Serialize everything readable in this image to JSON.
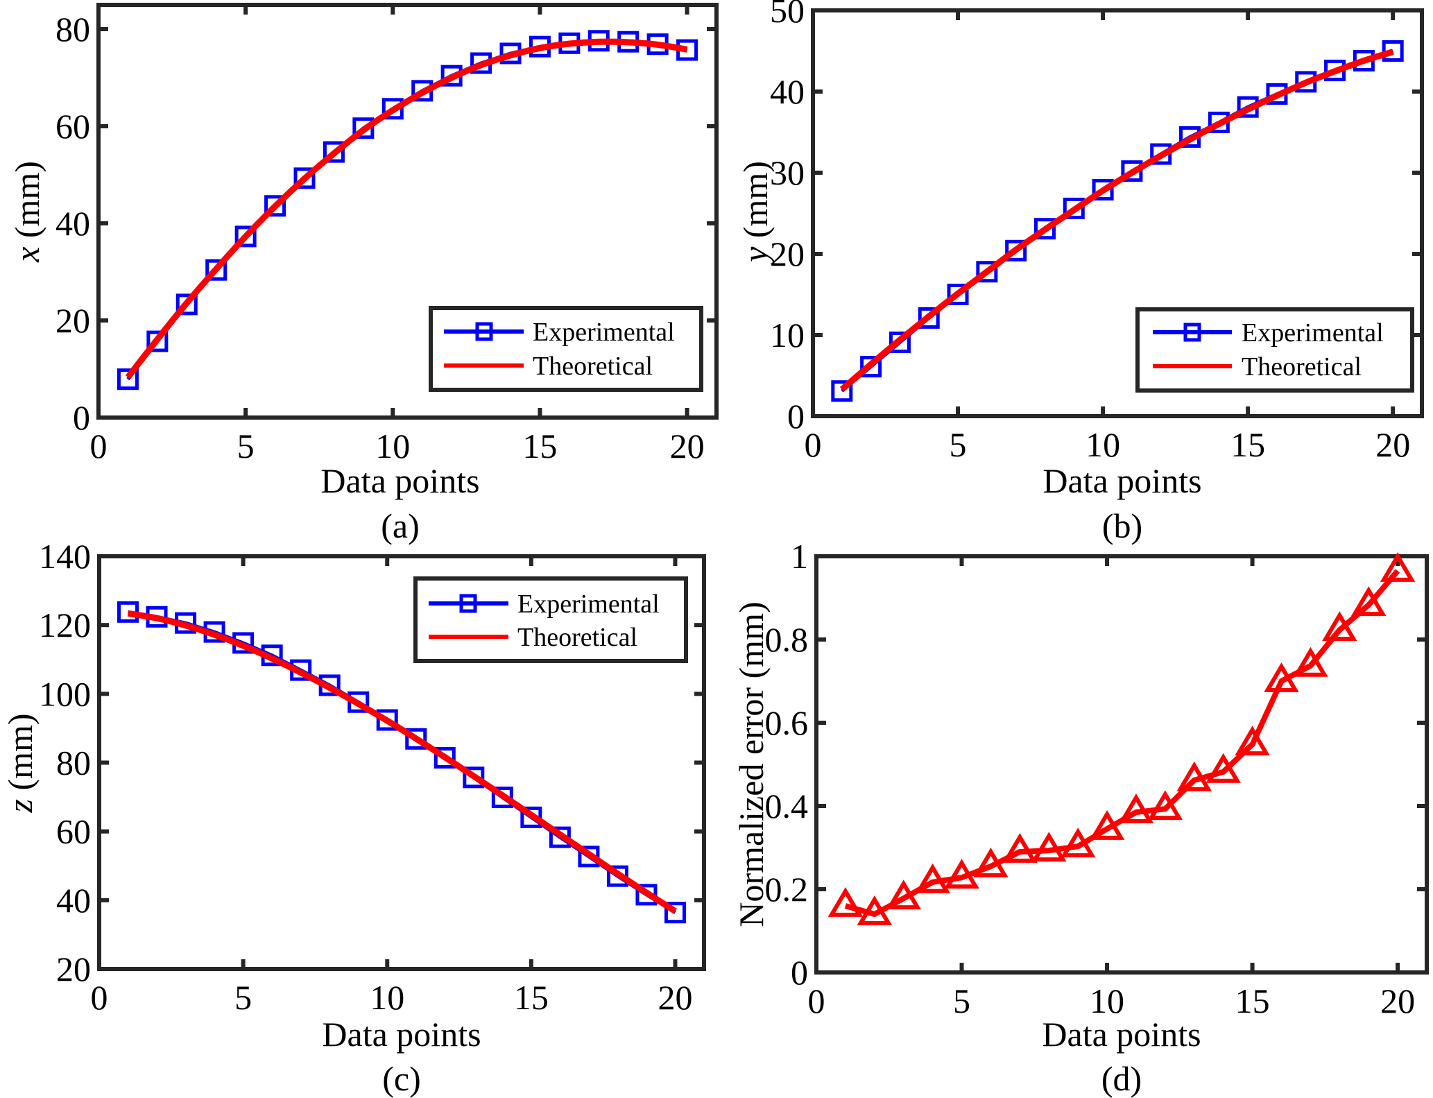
{
  "figure": {
    "colors": {
      "experimental": "#0000ff",
      "theoretical": "#ff0000",
      "error": "#ff0000",
      "axes": "#262626"
    }
  },
  "chart_data": [
    {
      "id": "a",
      "type": "line",
      "panel_label": "(a)",
      "xlabel": "Data points",
      "ylabel_var": "x",
      "ylabel_unit": " (mm)",
      "xlim": [
        0,
        21
      ],
      "ylim": [
        0,
        85
      ],
      "xticks": [
        0,
        5,
        10,
        15,
        20
      ],
      "yticks": [
        0,
        20,
        40,
        60,
        80
      ],
      "grid": false,
      "legend": {
        "placement": "bottom-right",
        "entries": [
          "Experimental",
          "Theoretical"
        ]
      },
      "x": [
        1,
        2,
        3,
        4,
        5,
        6,
        7,
        8,
        9,
        10,
        11,
        12,
        13,
        14,
        15,
        16,
        17,
        18,
        19,
        20
      ],
      "series": [
        {
          "name": "Experimental",
          "marker": "square",
          "values": [
            7.9,
            15.7,
            23.3,
            30.4,
            37.3,
            43.6,
            49.3,
            54.7,
            59.6,
            63.6,
            67.3,
            70.4,
            73.0,
            75.0,
            76.4,
            77.1,
            77.6,
            77.4,
            76.9,
            75.7
          ]
        },
        {
          "name": "Theoretical",
          "marker": "none",
          "values": [
            8.3,
            16.1,
            23.6,
            30.6,
            37.3,
            43.5,
            49.2,
            54.4,
            59.2,
            63.3,
            66.9,
            70.0,
            72.6,
            74.6,
            76.1,
            77.0,
            77.4,
            77.3,
            76.8,
            75.8
          ]
        }
      ]
    },
    {
      "id": "b",
      "type": "line",
      "panel_label": "(b)",
      "xlabel": "Data points",
      "ylabel_var": "y",
      "ylabel_unit": " (mm)",
      "xlim": [
        0,
        21
      ],
      "ylim": [
        0,
        50
      ],
      "xticks": [
        0,
        5,
        10,
        15,
        20
      ],
      "yticks": [
        0,
        10,
        20,
        30,
        40,
        50
      ],
      "grid": false,
      "legend": {
        "placement": "bottom-right",
        "entries": [
          "Experimental",
          "Theoretical"
        ]
      },
      "x": [
        1,
        2,
        3,
        4,
        5,
        6,
        7,
        8,
        9,
        10,
        11,
        12,
        13,
        14,
        15,
        16,
        17,
        18,
        19,
        20
      ],
      "series": [
        {
          "name": "Experimental",
          "marker": "square",
          "values": [
            3.1,
            6.1,
            9.1,
            12.1,
            15.0,
            17.8,
            20.4,
            23.1,
            25.6,
            27.9,
            30.2,
            32.3,
            34.4,
            36.2,
            38.1,
            39.7,
            41.2,
            42.6,
            43.8,
            45.0
          ]
        },
        {
          "name": "Theoretical",
          "marker": "none",
          "values": [
            3.3,
            6.4,
            9.4,
            12.3,
            15.1,
            17.8,
            20.5,
            23.0,
            25.4,
            27.8,
            30.0,
            32.1,
            34.1,
            36.0,
            37.8,
            39.5,
            41.1,
            42.5,
            43.8,
            44.9
          ]
        }
      ]
    },
    {
      "id": "c",
      "type": "line",
      "panel_label": "(c)",
      "xlabel": "Data points",
      "ylabel_var": "z",
      "ylabel_unit": " (mm)",
      "xlim": [
        0,
        21
      ],
      "ylim": [
        20,
        140
      ],
      "xticks": [
        0,
        5,
        10,
        15,
        20
      ],
      "yticks": [
        20,
        40,
        60,
        80,
        100,
        120,
        140
      ],
      "grid": false,
      "legend": {
        "placement": "top-right",
        "entries": [
          "Experimental",
          "Theoretical"
        ]
      },
      "x": [
        1,
        2,
        3,
        4,
        5,
        6,
        7,
        8,
        9,
        10,
        11,
        12,
        13,
        14,
        15,
        16,
        17,
        18,
        19,
        20
      ],
      "series": [
        {
          "name": "Experimental",
          "marker": "square",
          "values": [
            123.8,
            122.4,
            120.6,
            118.0,
            114.8,
            111.2,
            106.9,
            102.5,
            97.6,
            92.4,
            86.9,
            81.4,
            75.7,
            69.9,
            64.1,
            58.3,
            52.7,
            47.0,
            41.6,
            36.4
          ]
        },
        {
          "name": "Theoretical",
          "marker": "none",
          "values": [
            123.4,
            122.0,
            119.9,
            117.2,
            114.0,
            110.3,
            106.2,
            101.8,
            97.1,
            92.2,
            87.0,
            81.6,
            76.1,
            70.5,
            64.8,
            59.1,
            53.4,
            47.7,
            42.2,
            36.8
          ]
        }
      ]
    },
    {
      "id": "d",
      "type": "line",
      "panel_label": "(d)",
      "xlabel": "Data points",
      "ylabel_var": "",
      "ylabel_unit": "Normalized error (mm)",
      "xlim": [
        0,
        21
      ],
      "ylim": [
        0,
        1
      ],
      "xticks": [
        0,
        5,
        10,
        15,
        20
      ],
      "yticks": [
        0,
        0.2,
        0.4,
        0.6,
        0.8,
        1
      ],
      "ytick_labels": [
        "0",
        "0.2",
        "0.4",
        "0.6",
        "0.8",
        "1"
      ],
      "grid": false,
      "x": [
        1,
        2,
        3,
        4,
        5,
        6,
        7,
        8,
        9,
        10,
        11,
        12,
        13,
        14,
        15,
        16,
        17,
        18,
        19,
        20
      ],
      "series": [
        {
          "name": "Normalized error",
          "marker": "triangle",
          "values": [
            0.16,
            0.14,
            0.178,
            0.217,
            0.228,
            0.255,
            0.29,
            0.293,
            0.303,
            0.345,
            0.385,
            0.393,
            0.462,
            0.482,
            0.548,
            0.7,
            0.737,
            0.823,
            0.883,
            0.965
          ]
        }
      ]
    }
  ]
}
